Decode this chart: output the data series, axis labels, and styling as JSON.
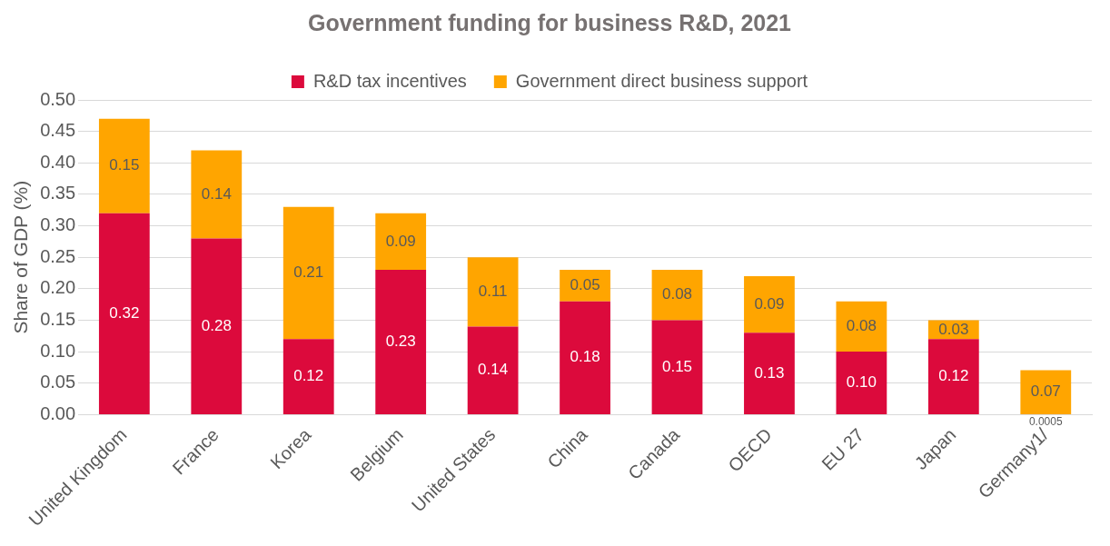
{
  "chart_data": {
    "type": "bar",
    "title": "Government funding for business R&D, 2021",
    "ylabel": "Share of GDP (%)",
    "categories": [
      "United Kingdom",
      "France",
      "Korea",
      "Belgium",
      "United States",
      "China",
      "Canada",
      "OECD",
      "EU 27",
      "Japan",
      "Germany1/"
    ],
    "series": [
      {
        "name": "R&D tax incentives",
        "color": "#dc0a3c",
        "values": [
          0.32,
          0.28,
          0.12,
          0.23,
          0.14,
          0.18,
          0.15,
          0.13,
          0.1,
          0.12,
          0.0005
        ],
        "value_labels": [
          "0.32",
          "0.28",
          "0.12",
          "0.23",
          "0.14",
          "0.18",
          "0.15",
          "0.13",
          "0.10",
          "0.12",
          "0.0005"
        ]
      },
      {
        "name": "Government direct business support",
        "color": "#ffa500",
        "values": [
          0.15,
          0.14,
          0.21,
          0.09,
          0.11,
          0.05,
          0.08,
          0.09,
          0.08,
          0.03,
          0.07
        ],
        "value_labels": [
          "0.15",
          "0.14",
          "0.21",
          "0.09",
          "0.11",
          "0.05",
          "0.08",
          "0.09",
          "0.08",
          "0.03",
          "0.07"
        ]
      }
    ],
    "stacked": true,
    "ylim": [
      0,
      0.5
    ],
    "yticks": [
      {
        "value": 0,
        "label": "0.00"
      },
      {
        "value": 0.05,
        "label": "0.05"
      },
      {
        "value": 0.1,
        "label": "0.10"
      },
      {
        "value": 0.15,
        "label": "0.15"
      },
      {
        "value": 0.2,
        "label": "0.20"
      },
      {
        "value": 0.25,
        "label": "0.25"
      },
      {
        "value": 0.3,
        "label": "0.30"
      },
      {
        "value": 0.35,
        "label": "0.35"
      },
      {
        "value": 0.4,
        "label": "0.40"
      },
      {
        "value": 0.45,
        "label": "0.45"
      },
      {
        "value": 0.5,
        "label": "0.50"
      }
    ],
    "grid": "y",
    "legend": "top"
  }
}
